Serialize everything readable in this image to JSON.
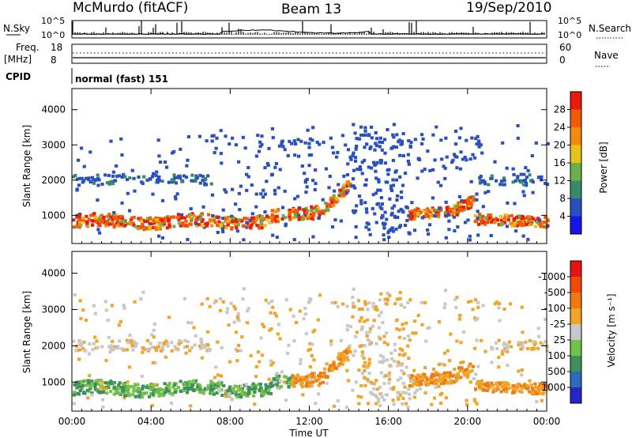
{
  "header": {
    "station": "McMurdo (fitACF)",
    "beam": "Beam 13",
    "date": "19/Sep/2010"
  },
  "top_panels": {
    "nsky_label": "N.Sky",
    "nsearch_label": "N.Search",
    "noise_ticks": [
      "10^5",
      "10^0"
    ],
    "freq_label": "Freq.",
    "freq_unit": "[MHz]",
    "freq_ticks": [
      "18",
      "8"
    ],
    "nave_label": "Nave",
    "nave_ticks": [
      "60",
      "0"
    ],
    "cpid_label": "CPID",
    "cpid_value": "normal (fast) 151"
  },
  "chart_data": [
    {
      "type": "heatmap",
      "title": "",
      "xlabel": "",
      "ylabel": "Slant Range [km]",
      "x_ticks": [
        "00:00",
        "04:00",
        "08:00",
        "12:00",
        "16:00",
        "20:00",
        "00:00"
      ],
      "y_ticks": [
        "1000",
        "2000",
        "3000",
        "4000"
      ],
      "xlim": [
        0,
        24
      ],
      "ylim": [
        200,
        4600
      ],
      "colorbar": {
        "label": "Power [dB]",
        "ticks": [
          "4",
          "8",
          "12",
          "16",
          "20",
          "24",
          "28"
        ],
        "colors": [
          "#1515e8",
          "#2a4fbf",
          "#3a8a6a",
          "#6bb04a",
          "#e6c21a",
          "#f08a10",
          "#f25a0a",
          "#e81b0b"
        ]
      }
    },
    {
      "type": "heatmap",
      "title": "",
      "xlabel": "Time UT",
      "ylabel": "Slant Range [km]",
      "x_ticks": [
        "00:00",
        "04:00",
        "08:00",
        "12:00",
        "16:00",
        "20:00",
        "00:00"
      ],
      "y_ticks": [
        "1000",
        "2000",
        "3000",
        "4000"
      ],
      "xlim": [
        0,
        24
      ],
      "ylim": [
        200,
        4600
      ],
      "colorbar": {
        "label": "Velocity [m s⁻¹]",
        "ticks": [
          "1000",
          "500",
          "100",
          "25",
          "-25",
          "-100",
          "-500",
          "-1000"
        ],
        "colors": [
          "#2626c8",
          "#2d6bb8",
          "#3f8f5c",
          "#72c24a",
          "#c8c8c8",
          "#f0a52a",
          "#f07a12",
          "#f04a0a",
          "#e81414"
        ]
      }
    }
  ]
}
